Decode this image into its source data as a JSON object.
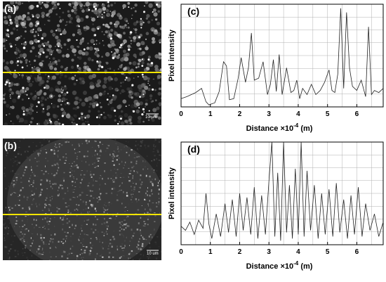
{
  "panels": {
    "a": {
      "letter": "(a)",
      "scale_label": "10 µm"
    },
    "b": {
      "letter": "(b)",
      "scale_label": "10 um"
    },
    "c": {
      "letter": "(c)"
    },
    "d": {
      "letter": "(d)"
    }
  },
  "colors": {
    "profile_line": "#f5e600",
    "trace": "#222222",
    "grid": "#b0b0b0",
    "axis": "#000000"
  },
  "chart_data": [
    {
      "id": "c",
      "type": "line",
      "title": "(c)",
      "xlabel": "Distance",
      "xlabel_multiplier": "×10",
      "xlabel_exponent": "-4",
      "xlabel_unit": "(m)",
      "ylabel": "Pixel intensity",
      "xlim": [
        0,
        6.9
      ],
      "ylim": [
        0,
        100
      ],
      "xticks": [
        0,
        1,
        2,
        3,
        4,
        5,
        6
      ],
      "grid": true,
      "x": [
        0,
        0.2,
        0.5,
        0.7,
        0.85,
        0.95,
        1.05,
        1.15,
        1.3,
        1.45,
        1.55,
        1.65,
        1.8,
        1.95,
        2.05,
        2.2,
        2.3,
        2.4,
        2.5,
        2.65,
        2.8,
        2.95,
        3.05,
        3.15,
        3.25,
        3.35,
        3.45,
        3.6,
        3.75,
        3.85,
        3.95,
        4.05,
        4.15,
        4.3,
        4.45,
        4.6,
        4.75,
        4.9,
        5.05,
        5.15,
        5.25,
        5.35,
        5.45,
        5.55,
        5.65,
        5.75,
        5.85,
        6.0,
        6.15,
        6.3,
        6.4,
        6.5,
        6.6,
        6.75,
        6.9
      ],
      "y": [
        8,
        10,
        14,
        18,
        5,
        2,
        3,
        4,
        15,
        44,
        40,
        7,
        8,
        28,
        48,
        24,
        38,
        72,
        26,
        28,
        44,
        12,
        22,
        46,
        15,
        51,
        12,
        38,
        14,
        16,
        26,
        8,
        18,
        12,
        22,
        12,
        16,
        24,
        36,
        16,
        14,
        32,
        96,
        18,
        92,
        38,
        20,
        16,
        26,
        10,
        78,
        12,
        16,
        14,
        18
      ]
    },
    {
      "id": "d",
      "type": "line",
      "title": "(d)",
      "xlabel": "Distance",
      "xlabel_multiplier": "×10",
      "xlabel_exponent": "-4",
      "xlabel_unit": "(m)",
      "ylabel": "Pixel intensity",
      "xlim": [
        0,
        6.9
      ],
      "ylim": [
        0,
        100
      ],
      "xticks": [
        0,
        1,
        2,
        3,
        4,
        5,
        6
      ],
      "grid": true,
      "x": [
        0,
        0.15,
        0.3,
        0.45,
        0.6,
        0.75,
        0.85,
        0.95,
        1.05,
        1.2,
        1.35,
        1.5,
        1.62,
        1.75,
        1.88,
        2.0,
        2.12,
        2.25,
        2.38,
        2.5,
        2.62,
        2.75,
        2.88,
        3.0,
        3.1,
        3.2,
        3.3,
        3.4,
        3.5,
        3.6,
        3.7,
        3.8,
        3.9,
        4.0,
        4.1,
        4.2,
        4.3,
        4.42,
        4.55,
        4.68,
        4.8,
        4.92,
        5.05,
        5.18,
        5.3,
        5.42,
        5.55,
        5.68,
        5.8,
        5.92,
        6.05,
        6.18,
        6.3,
        6.45,
        6.6,
        6.75,
        6.9
      ],
      "y": [
        18,
        14,
        22,
        10,
        24,
        16,
        50,
        20,
        6,
        30,
        8,
        40,
        12,
        44,
        8,
        50,
        14,
        46,
        10,
        56,
        6,
        48,
        10,
        62,
        100,
        8,
        70,
        4,
        100,
        12,
        58,
        6,
        74,
        10,
        100,
        8,
        72,
        14,
        58,
        6,
        50,
        10,
        54,
        8,
        60,
        12,
        44,
        6,
        48,
        10,
        56,
        8,
        40,
        14,
        30,
        8,
        22
      ]
    }
  ]
}
